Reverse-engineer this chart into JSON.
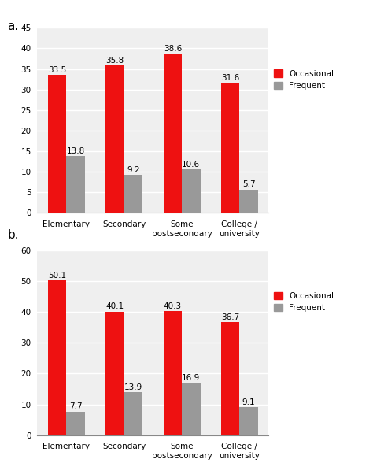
{
  "chart_a": {
    "label": "a.",
    "categories": [
      "Elementary",
      "Secondary",
      "Some\npostsecondary",
      "College /\nuniversity"
    ],
    "occasional": [
      33.5,
      35.8,
      38.6,
      31.6
    ],
    "frequent": [
      13.8,
      9.2,
      10.6,
      5.7
    ],
    "ylim": [
      0,
      45
    ],
    "yticks": [
      0,
      5,
      10,
      15,
      20,
      25,
      30,
      35,
      40,
      45
    ]
  },
  "chart_b": {
    "label": "b.",
    "categories": [
      "Elementary",
      "Secondary",
      "Some\npostsecondary",
      "College /\nuniversity"
    ],
    "occasional": [
      50.1,
      40.1,
      40.3,
      36.7
    ],
    "frequent": [
      7.7,
      13.9,
      16.9,
      9.1
    ],
    "ylim": [
      0,
      60
    ],
    "yticks": [
      0,
      10,
      20,
      30,
      40,
      50,
      60
    ]
  },
  "occasional_color": "#EE1111",
  "frequent_color": "#999999",
  "bg_color": "#EFEFEF",
  "bar_width": 0.32,
  "annotation_fontsize": 7.5,
  "legend_fontsize": 7.5,
  "tick_fontsize": 7.5,
  "label_fontsize": 11
}
